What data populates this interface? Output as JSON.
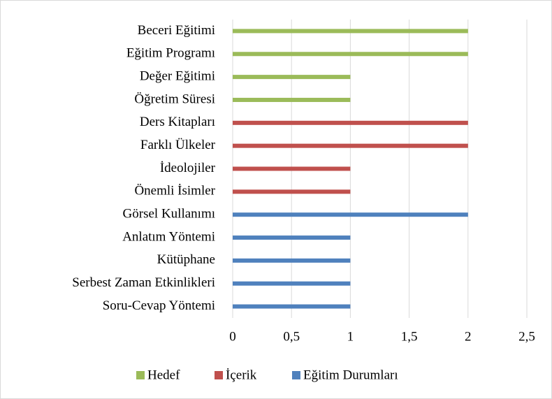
{
  "chart_data": {
    "type": "bar",
    "orientation": "horizontal",
    "categories": [
      "Beceri Eğitimi",
      "Eğitim Programı",
      "Değer Eğitimi",
      "Öğretim Süresi",
      "Ders Kitapları",
      "Farklı Ülkeler",
      "İdeolojiler",
      "Önemli İsimler",
      "Görsel Kullanımı",
      "Anlatım Yöntemi",
      "Kütüphane",
      "Serbest Zaman Etkinlikleri",
      "Soru-Cevap Yöntemi"
    ],
    "series": [
      {
        "name": "Hedef",
        "color": "#9bbb59",
        "values": [
          2,
          2,
          1,
          1,
          null,
          null,
          null,
          null,
          null,
          null,
          null,
          null,
          null
        ]
      },
      {
        "name": "İçerik",
        "color": "#c0504d",
        "values": [
          null,
          null,
          null,
          null,
          2,
          2,
          1,
          1,
          null,
          null,
          null,
          null,
          null
        ]
      },
      {
        "name": "Eğitim Durumları",
        "color": "#4f81bd",
        "values": [
          null,
          null,
          null,
          null,
          null,
          null,
          null,
          null,
          2,
          1,
          1,
          1,
          1
        ]
      }
    ],
    "xlim": [
      0,
      2.5
    ],
    "xticks": [
      0,
      {
        "value": 0.5,
        "label": "0,5"
      },
      1,
      {
        "value": 1.5,
        "label": "1,5"
      },
      2,
      {
        "value": 2.5,
        "label": "2,5"
      }
    ],
    "grid": true,
    "legend": "bottom"
  }
}
